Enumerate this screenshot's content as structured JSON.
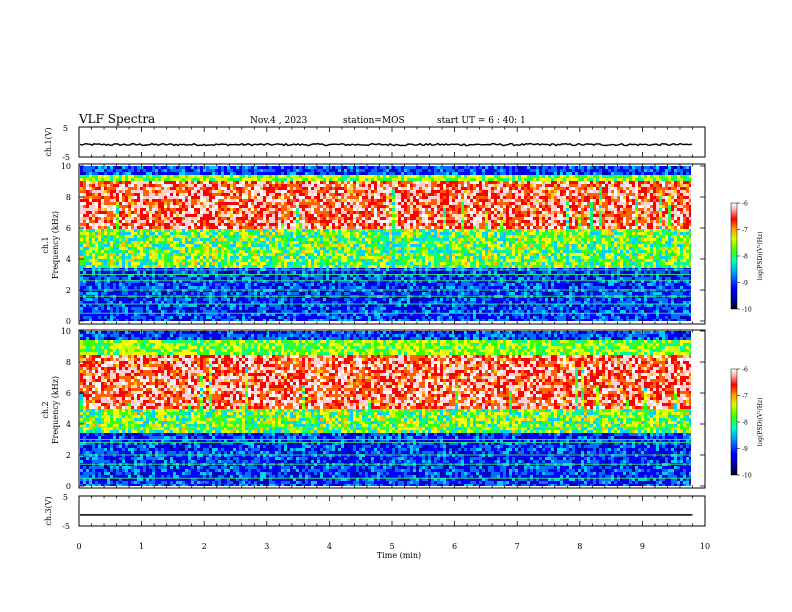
{
  "header": {
    "title": "VLF Spectra",
    "date": "Nov.4 , 2023",
    "station": "station=MOS",
    "start_ut": "start UT = 6 : 40: 1"
  },
  "chart_data": [
    {
      "type": "line",
      "panel": "ch1-voltage",
      "ylabel": "ch.1(V)",
      "ylim": [
        -5,
        5
      ],
      "ytick_labels": [
        "5",
        "-5"
      ],
      "xlim": [
        0,
        10
      ],
      "series": [
        {
          "values_note": "",
          "level": -1.0
        }
      ]
    },
    {
      "type": "heatmap",
      "panel": "ch1-spectrogram",
      "ylabel_channel": "ch.1",
      "ylabel": "Frequency (kHz)",
      "ylim": [
        0,
        10
      ],
      "ytick_labels": [
        "0",
        "2",
        "4",
        "6",
        "8",
        "10"
      ],
      "xlim": [
        0,
        9.8
      ],
      "colorbar": {
        "label": "log(PSD)(V²/Hz)",
        "range": [
          -10,
          -6
        ],
        "tick_labels": [
          "-6",
          "-7",
          "-8",
          "-9",
          "-10"
        ]
      },
      "bands_khz": {
        "high_power": [
          6.0,
          9.2
        ],
        "noise_lines": [
          0.5,
          1.1,
          1.6,
          2.0,
          2.6,
          3.0,
          3.3
        ]
      }
    },
    {
      "type": "heatmap",
      "panel": "ch2-spectrogram",
      "ylabel_channel": "ch.2",
      "ylabel": "Frequency (kHz)",
      "ylim": [
        0,
        10
      ],
      "ytick_labels": [
        "0",
        "2",
        "4",
        "6",
        "8",
        "10"
      ],
      "xlim": [
        0,
        9.8
      ],
      "colorbar": {
        "label": "log(PSD)(V²/Hz)",
        "range": [
          -10,
          -6
        ],
        "tick_labels": [
          "-6",
          "-7",
          "-8",
          "-9",
          "-10"
        ]
      },
      "bands_khz": {
        "high_power": [
          5.0,
          8.5
        ],
        "noise_lines": [
          0.5,
          1.4,
          2.0,
          2.8,
          3.0,
          3.8
        ]
      }
    },
    {
      "type": "line",
      "panel": "ch3-voltage",
      "ylabel": "ch.3(V)",
      "ylim": [
        -5,
        5
      ],
      "ytick_labels": [
        "5",
        "-5"
      ],
      "xlim": [
        0,
        9.8
      ],
      "series": [
        {
          "level": -1.5
        }
      ]
    }
  ],
  "x_axis": {
    "label": "Time (min)",
    "tick_labels": [
      "0",
      "1",
      "2",
      "3",
      "4",
      "5",
      "6",
      "7",
      "8",
      "9",
      "10"
    ]
  },
  "colors": {
    "colormap": [
      "#000000",
      "#0000a8",
      "#0000ff",
      "#0070ff",
      "#00d0ff",
      "#00ff90",
      "#40ff00",
      "#c8ff00",
      "#ffff00",
      "#ffc000",
      "#ff6000",
      "#ff0000",
      "#ffd0d0",
      "#ffffff"
    ]
  }
}
